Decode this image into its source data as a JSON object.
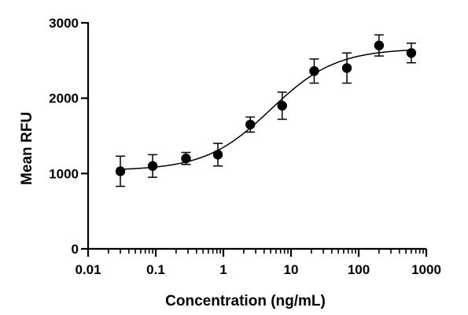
{
  "chart_data": {
    "type": "scatter",
    "title": "",
    "xlabel": "Concentration (ng/mL)",
    "ylabel": "Mean RFU",
    "xscale": "log",
    "xlim": [
      0.01,
      1000
    ],
    "ylim": [
      0,
      3000
    ],
    "x_ticks": [
      0.01,
      0.1,
      1,
      10,
      100,
      1000
    ],
    "x_tick_labels": [
      "0.01",
      "0.1",
      "1",
      "10",
      "100",
      "1000"
    ],
    "y_ticks": [
      0,
      1000,
      2000,
      3000
    ],
    "y_tick_labels": [
      "0",
      "1000",
      "2000",
      "3000"
    ],
    "grid": false,
    "legend": "none",
    "points": [
      {
        "x": 0.03,
        "y": 1030,
        "err": 200
      },
      {
        "x": 0.09,
        "y": 1100,
        "err": 150
      },
      {
        "x": 0.28,
        "y": 1200,
        "err": 80
      },
      {
        "x": 0.83,
        "y": 1250,
        "err": 150
      },
      {
        "x": 2.5,
        "y": 1650,
        "err": 100
      },
      {
        "x": 7.4,
        "y": 1900,
        "err": 180
      },
      {
        "x": 22,
        "y": 2360,
        "err": 160
      },
      {
        "x": 67,
        "y": 2400,
        "err": 200
      },
      {
        "x": 200,
        "y": 2700,
        "err": 140
      },
      {
        "x": 600,
        "y": 2600,
        "err": 130
      }
    ],
    "fit": {
      "model": "four-parameter logistic",
      "bottom": 1040,
      "top": 2660,
      "ec50": 5,
      "hill": 0.9
    },
    "colors": {
      "points": "#000000",
      "line": "#000000"
    }
  }
}
